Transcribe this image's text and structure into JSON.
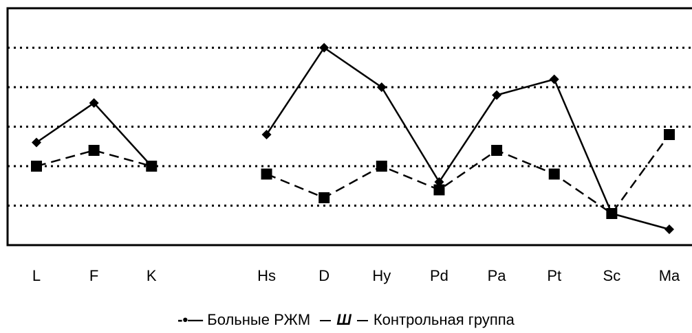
{
  "chart_data": {
    "type": "line",
    "categories": [
      "L",
      "F",
      "K",
      null,
      "Hs",
      "D",
      "Hy",
      "Pd",
      "Pa",
      "Pt",
      "Sc",
      "Ma"
    ],
    "series": [
      {
        "name": "Больные РЖМ",
        "color": "#000000",
        "marker": "diamond",
        "line": "solid",
        "legend_symbol": "-•—",
        "values": [
          2.6,
          3.6,
          2.0,
          null,
          2.8,
          5.0,
          4.0,
          1.6,
          3.8,
          4.2,
          0.8,
          0.4
        ]
      },
      {
        "name": "Контрольная группа",
        "color": "#000000",
        "marker": "square",
        "line": "dashed",
        "legend_symbol": "Ш",
        "values": [
          2.0,
          2.4,
          2.0,
          null,
          1.8,
          1.2,
          2.0,
          1.4,
          2.4,
          1.8,
          0.8,
          2.8
        ]
      }
    ],
    "ylim": [
      0,
      6
    ],
    "yticks": [
      1,
      2,
      3,
      4,
      5
    ],
    "grid": true
  }
}
